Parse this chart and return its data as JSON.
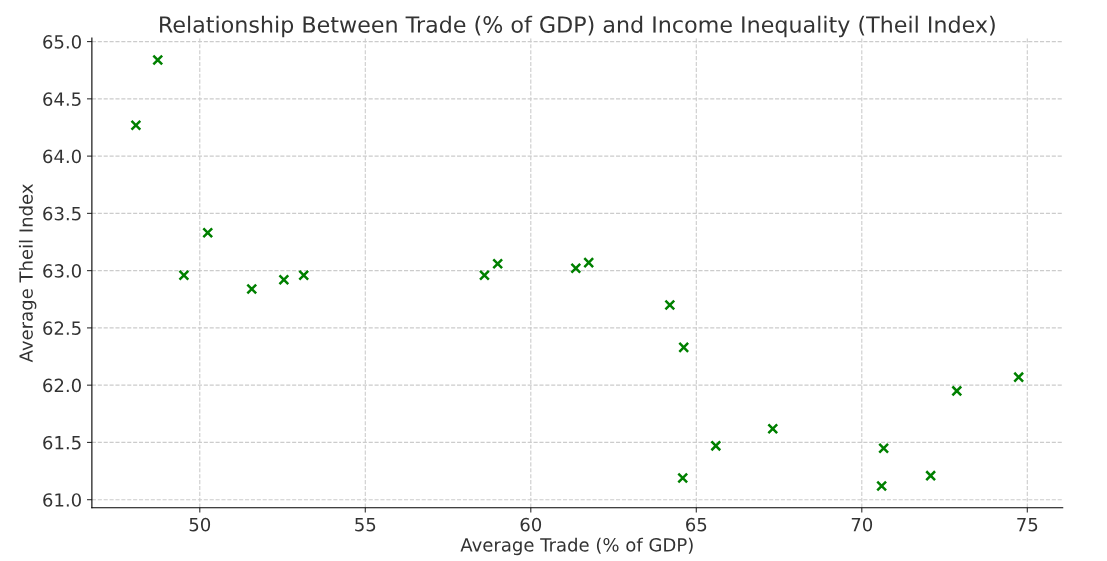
{
  "chart_data": {
    "type": "scatter",
    "title": "Relationship Between Trade (% of GDP) and Income Inequality (Theil Index)",
    "xlabel": "Average Trade (% of GDP)",
    "ylabel": "Average Theil Index",
    "x": [
      48.07,
      48.73,
      49.52,
      50.24,
      51.57,
      52.54,
      53.14,
      58.6,
      59.0,
      61.36,
      61.75,
      64.2,
      64.62,
      64.59,
      65.59,
      67.31,
      70.66,
      70.6,
      72.08,
      72.87,
      74.74
    ],
    "series": [
      {
        "color": "#008000",
        "values": [
          64.27,
          64.84,
          62.96,
          63.33,
          62.84,
          62.92,
          62.96,
          62.96,
          63.06,
          63.02,
          63.07,
          62.7,
          62.33,
          61.19,
          61.47,
          61.62,
          61.45,
          61.12,
          61.21,
          61.95,
          62.07
        ]
      }
    ],
    "marker": "cross",
    "grid": true,
    "xlim": [
      46.74,
      76.07
    ],
    "xticks": [
      50,
      55,
      60,
      65,
      70,
      75
    ],
    "ylim": [
      60.93,
      65.03
    ],
    "yticks": [
      {
        "value": 61,
        "label": "61.0"
      },
      {
        "value": 61.5,
        "label": "61.5"
      },
      {
        "value": 62,
        "label": "62.0"
      },
      {
        "value": 62.5,
        "label": "62.5"
      },
      {
        "value": 63,
        "label": "63.0"
      },
      {
        "value": 63.5,
        "label": "63.5"
      },
      {
        "value": 64,
        "label": "64.0"
      },
      {
        "value": 64.5,
        "label": "64.5"
      },
      {
        "value": 65,
        "label": "65.0"
      }
    ]
  }
}
